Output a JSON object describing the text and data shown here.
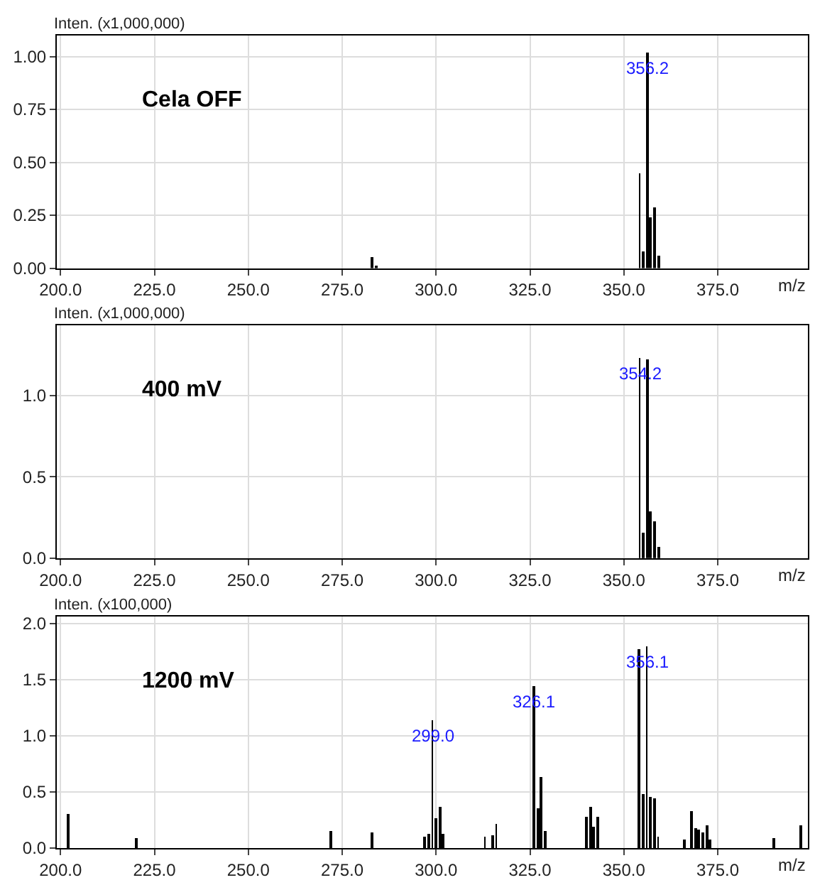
{
  "chart_data": [
    {
      "type": "bar",
      "title": "Cela OFF",
      "ylabel": "Inten. (x1,000,000)",
      "xlabel": "m/z",
      "color": "#000000",
      "grid": true,
      "x": [
        283.0,
        284.0,
        354.2,
        355.2,
        356.2,
        357.2,
        358.2,
        359.2
      ],
      "values": [
        0.05,
        0.01,
        0.45,
        0.08,
        1.02,
        0.24,
        0.29,
        0.06
      ],
      "xlim": [
        199,
        399
      ],
      "xticks": [
        {
          "value": 200,
          "label": "200.0"
        },
        {
          "value": 225,
          "label": "225.0"
        },
        {
          "value": 250,
          "label": "250.0"
        },
        {
          "value": 275,
          "label": "275.0"
        },
        {
          "value": 300,
          "label": "300.0"
        },
        {
          "value": 325,
          "label": "325.0"
        },
        {
          "value": 350,
          "label": "350.0"
        },
        {
          "value": 375,
          "label": "375.0"
        }
      ],
      "ylim": [
        0,
        1.1
      ],
      "yticks": [
        {
          "value": 0,
          "label": "0.00"
        },
        {
          "value": 0.25,
          "label": "0.25"
        },
        {
          "value": 0.5,
          "label": "0.50"
        },
        {
          "value": 0.75,
          "label": "0.75"
        },
        {
          "value": 1,
          "label": "1.00"
        }
      ],
      "annotations": [
        {
          "text": "356.2",
          "x": 356.2,
          "y": 1.02
        }
      ]
    },
    {
      "type": "bar",
      "title": "400 mV",
      "ylabel": "Inten. (x1,000,000)",
      "xlabel": "m/z",
      "color": "#000000",
      "grid": true,
      "x": [
        354.2,
        355.2,
        356.2,
        357.2,
        358.2,
        359.2
      ],
      "values": [
        1.23,
        0.16,
        1.22,
        0.29,
        0.23,
        0.07
      ],
      "xlim": [
        199,
        399
      ],
      "xticks": [
        {
          "value": 200,
          "label": "200.0"
        },
        {
          "value": 225,
          "label": "225.0"
        },
        {
          "value": 250,
          "label": "250.0"
        },
        {
          "value": 275,
          "label": "275.0"
        },
        {
          "value": 300,
          "label": "300.0"
        },
        {
          "value": 325,
          "label": "325.0"
        },
        {
          "value": 350,
          "label": "350.0"
        },
        {
          "value": 375,
          "label": "375.0"
        }
      ],
      "ylim": [
        0,
        1.43
      ],
      "yticks": [
        {
          "value": 0,
          "label": "0.0"
        },
        {
          "value": 0.5,
          "label": "0.5"
        },
        {
          "value": 1,
          "label": "1.0"
        }
      ],
      "annotations": [
        {
          "text": "354.2",
          "x": 354.2,
          "y": 1.23
        }
      ]
    },
    {
      "type": "bar",
      "title": "1200 mV",
      "ylabel": "Inten. (x100,000)",
      "xlabel": "m/z",
      "color": "#000000",
      "grid": true,
      "x": [
        202,
        220,
        272,
        283,
        297,
        298,
        299.0,
        300,
        301,
        302,
        313,
        315,
        316,
        326.1,
        327,
        328,
        329,
        340,
        341,
        342,
        343,
        354.1,
        355.1,
        356.1,
        357.1,
        358.1,
        359.1,
        366,
        368,
        369,
        370,
        371,
        372,
        373,
        390,
        397
      ],
      "values": [
        0.3,
        0.09,
        0.15,
        0.14,
        0.1,
        0.13,
        1.14,
        0.27,
        0.37,
        0.13,
        0.1,
        0.11,
        0.22,
        1.44,
        0.35,
        0.63,
        0.15,
        0.28,
        0.37,
        0.19,
        0.28,
        1.77,
        0.48,
        1.79,
        0.45,
        0.44,
        0.1,
        0.07,
        0.33,
        0.17,
        0.16,
        0.14,
        0.2,
        0.07,
        0.09,
        0.2
      ],
      "xlim": [
        199,
        399
      ],
      "xticks": [
        {
          "value": 200,
          "label": "200.0"
        },
        {
          "value": 225,
          "label": "225.0"
        },
        {
          "value": 250,
          "label": "250.0"
        },
        {
          "value": 275,
          "label": "275.0"
        },
        {
          "value": 300,
          "label": "300.0"
        },
        {
          "value": 325,
          "label": "325.0"
        },
        {
          "value": 350,
          "label": "350.0"
        },
        {
          "value": 375,
          "label": "375.0"
        }
      ],
      "ylim": [
        0,
        2.06
      ],
      "yticks": [
        {
          "value": 0,
          "label": "0.0"
        },
        {
          "value": 0.5,
          "label": "0.5"
        },
        {
          "value": 1,
          "label": "1.0"
        },
        {
          "value": 1.5,
          "label": "1.5"
        },
        {
          "value": 2,
          "label": "2.0"
        }
      ],
      "annotations": [
        {
          "text": "299.0",
          "x": 299.0,
          "y": 1.14
        },
        {
          "text": "326.1",
          "x": 326.1,
          "y": 1.44
        },
        {
          "text": "356.1",
          "x": 356.1,
          "y": 1.79
        }
      ]
    }
  ]
}
